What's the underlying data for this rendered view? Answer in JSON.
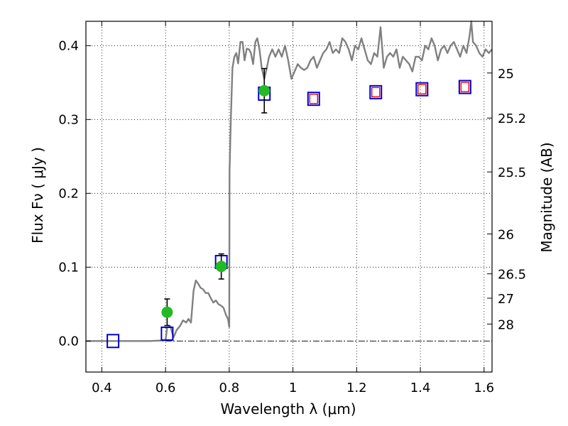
{
  "chart_data": {
    "type": "scatter",
    "xlabel": "Wavelength  λ (μm)",
    "ylabel": "Flux  Fν  ( μJy )",
    "ylabel_right": "Magnitude (AB)",
    "xlim": [
      0.35,
      1.625
    ],
    "ylim": [
      -0.042,
      0.433
    ],
    "grid": true,
    "x_ticks": [
      0.4,
      0.6,
      0.8,
      1.0,
      1.2,
      1.4,
      1.6
    ],
    "x_tick_labels": [
      "0.4",
      "0.6",
      "0.8",
      "1",
      "1.2",
      "1.4",
      "1.6"
    ],
    "y_ticks": [
      0.0,
      0.1,
      0.2,
      0.3,
      0.4
    ],
    "y_tick_labels": [
      "0.0",
      "0.1",
      "0.2",
      "0.3",
      "0.4"
    ],
    "mag_ticks": [
      {
        "label": "25",
        "flux": 0.363
      },
      {
        "label": "25.2",
        "flux": 0.302
      },
      {
        "label": "25.5",
        "flux": 0.229
      },
      {
        "label": "26",
        "flux": 0.145
      },
      {
        "label": "26.5",
        "flux": 0.091
      },
      {
        "label": "27",
        "flux": 0.058
      },
      {
        "label": "28",
        "flux": 0.023
      }
    ],
    "colors": {
      "spectrum": "#808080",
      "observed": "#22bb22",
      "model_box": "#0000cc",
      "model_inner": "#ff0000",
      "errorbar": "#000000"
    },
    "series": [
      {
        "kind": "spectrum",
        "x": [
          0.35,
          0.55,
          0.6,
          0.605,
          0.615,
          0.625,
          0.635,
          0.645,
          0.655,
          0.665,
          0.672,
          0.68,
          0.688,
          0.695,
          0.702,
          0.71,
          0.718,
          0.726,
          0.734,
          0.742,
          0.75,
          0.758,
          0.766,
          0.774,
          0.782,
          0.79,
          0.796,
          0.8,
          0.801,
          0.805,
          0.81,
          0.816,
          0.822,
          0.828,
          0.835,
          0.842,
          0.848,
          0.855,
          0.862,
          0.868,
          0.875,
          0.882,
          0.888,
          0.895,
          0.902,
          0.91,
          0.918,
          0.925,
          0.935,
          0.945,
          0.955,
          0.965,
          0.975,
          0.985,
          0.995,
          1.005,
          1.015,
          1.025,
          1.035,
          1.045,
          1.055,
          1.065,
          1.075,
          1.085,
          1.095,
          1.105,
          1.115,
          1.125,
          1.135,
          1.145,
          1.155,
          1.165,
          1.175,
          1.185,
          1.195,
          1.205,
          1.215,
          1.225,
          1.235,
          1.245,
          1.255,
          1.265,
          1.275,
          1.285,
          1.295,
          1.305,
          1.315,
          1.325,
          1.335,
          1.345,
          1.355,
          1.365,
          1.375,
          1.385,
          1.395,
          1.405,
          1.415,
          1.425,
          1.435,
          1.445,
          1.455,
          1.465,
          1.475,
          1.485,
          1.495,
          1.505,
          1.515,
          1.525,
          1.535,
          1.545,
          1.555,
          1.56,
          1.565,
          1.575,
          1.585,
          1.595,
          1.605,
          1.615,
          1.625
        ],
        "y": [
          0.0,
          0.0,
          0.001,
          0.018,
          0.02,
          0.005,
          0.015,
          0.02,
          0.028,
          0.025,
          0.03,
          0.025,
          0.068,
          0.082,
          0.078,
          0.072,
          0.07,
          0.065,
          0.065,
          0.058,
          0.052,
          0.055,
          0.05,
          0.048,
          0.045,
          0.035,
          0.03,
          0.019,
          0.23,
          0.3,
          0.37,
          0.385,
          0.39,
          0.376,
          0.405,
          0.405,
          0.38,
          0.396,
          0.395,
          0.39,
          0.375,
          0.405,
          0.41,
          0.395,
          0.37,
          0.355,
          0.37,
          0.385,
          0.395,
          0.385,
          0.395,
          0.385,
          0.4,
          0.38,
          0.355,
          0.365,
          0.375,
          0.37,
          0.367,
          0.37,
          0.38,
          0.385,
          0.37,
          0.38,
          0.39,
          0.395,
          0.405,
          0.39,
          0.395,
          0.39,
          0.41,
          0.405,
          0.395,
          0.38,
          0.4,
          0.395,
          0.41,
          0.395,
          0.38,
          0.375,
          0.39,
          0.385,
          0.425,
          0.37,
          0.385,
          0.39,
          0.385,
          0.395,
          0.37,
          0.385,
          0.38,
          0.375,
          0.365,
          0.385,
          0.385,
          0.38,
          0.4,
          0.395,
          0.41,
          0.4,
          0.38,
          0.395,
          0.4,
          0.39,
          0.4,
          0.405,
          0.395,
          0.385,
          0.4,
          0.39,
          0.415,
          0.445,
          0.405,
          0.4,
          0.39,
          0.385,
          0.395,
          0.39,
          0.395
        ]
      },
      {
        "kind": "model",
        "x": [
          0.435,
          0.605,
          0.775,
          0.91,
          1.065,
          1.26,
          1.405,
          1.54
        ],
        "y": [
          0.0,
          0.01,
          0.107,
          0.335,
          0.328,
          0.337,
          0.341,
          0.344
        ],
        "red_inner": [
          false,
          false,
          false,
          false,
          true,
          true,
          true,
          true
        ]
      },
      {
        "kind": "observed",
        "x": [
          0.605,
          0.775,
          0.91
        ],
        "y": [
          0.039,
          0.101,
          0.339
        ],
        "yerr": [
          0.018,
          0.017,
          0.03
        ]
      }
    ]
  }
}
